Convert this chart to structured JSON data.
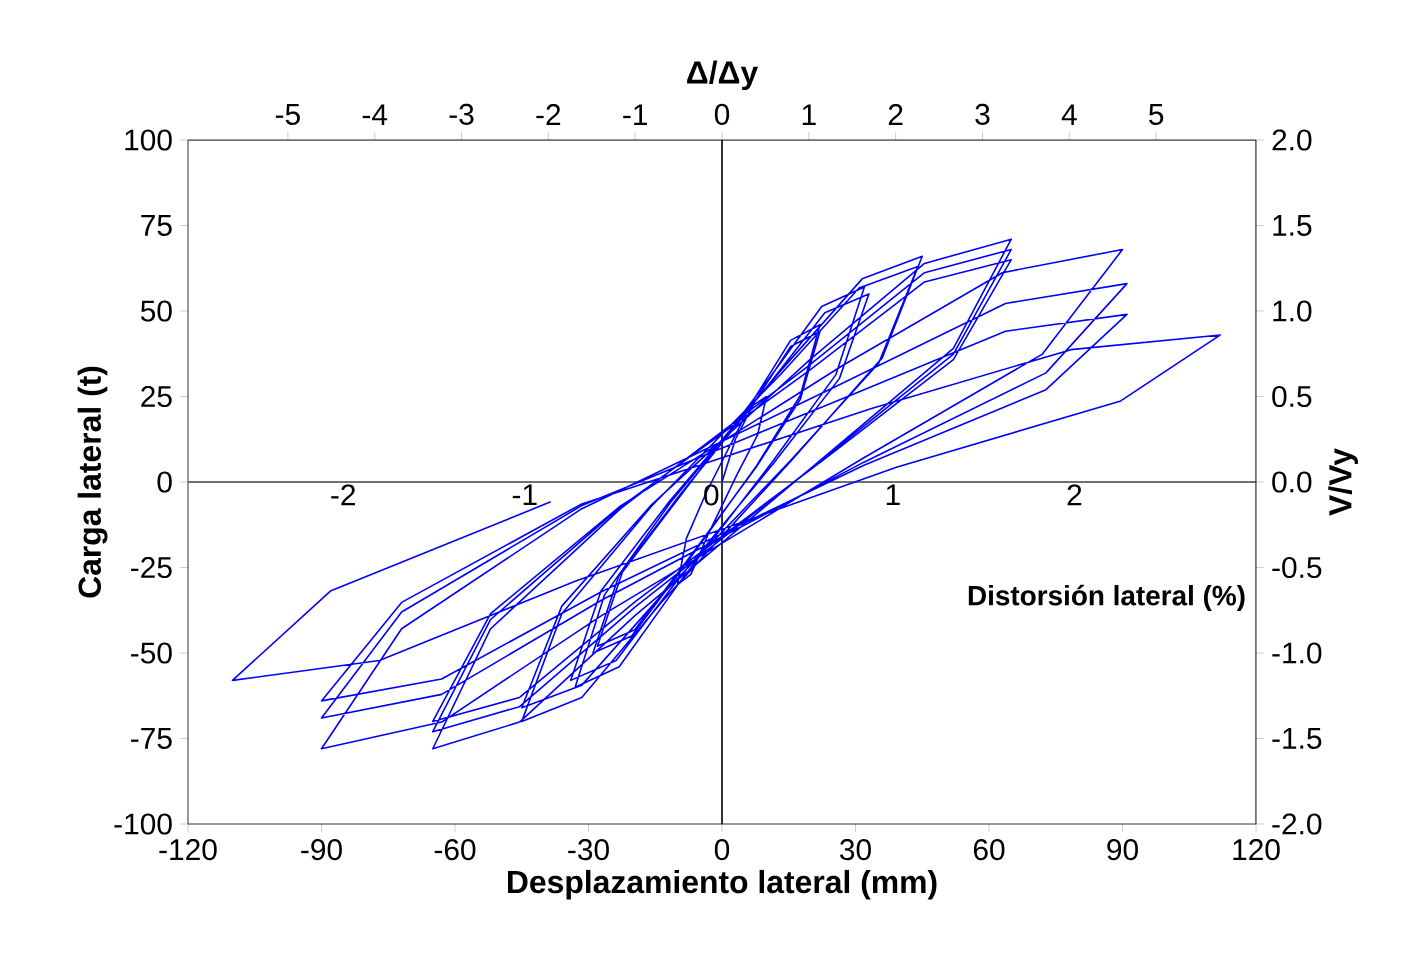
{
  "chart_data": {
    "type": "line",
    "xlabel": "Desplazamiento lateral (mm)",
    "ylabel": "Carga lateral (t)",
    "x2label": "Δ/Δy",
    "y2label": "V/Vy",
    "annotations": [
      {
        "text": "-2",
        "x": -81.6,
        "y": 0
      },
      {
        "text": "-1",
        "x": -40.8,
        "y": 0
      },
      {
        "text": "0",
        "x": 0,
        "y": 0
      },
      {
        "text": "1",
        "x": 40.8,
        "y": 0
      },
      {
        "text": "2",
        "x": 81.6,
        "y": 0
      },
      "Distorsión lateral (%)"
    ],
    "xlim": [
      -120,
      120
    ],
    "xticks": [
      -120,
      -90,
      -60,
      -30,
      0,
      30,
      60,
      90,
      120
    ],
    "ylim": [
      -100,
      100
    ],
    "yticks": [
      -100,
      -75,
      -50,
      -25,
      0,
      25,
      50,
      75,
      100
    ],
    "x2lim": [
      -6.15,
      6.15
    ],
    "x2ticks": [
      -5,
      -4,
      -3,
      -2,
      -1,
      0,
      1,
      2,
      3,
      4,
      5
    ],
    "y2lim": [
      -2,
      2
    ],
    "y2ticks": [
      {
        "value": -2,
        "label": "-2.0"
      },
      {
        "value": -1.5,
        "label": "-1.5"
      },
      {
        "value": -1,
        "label": "-1.0"
      },
      {
        "value": -0.5,
        "label": "-0.5"
      },
      {
        "value": 0,
        "label": "0.0"
      },
      {
        "value": 0.5,
        "label": "0.5"
      },
      {
        "value": 1,
        "label": "1.0"
      },
      {
        "value": 1.5,
        "label": "1.5"
      },
      {
        "value": 2,
        "label": "2.0"
      }
    ],
    "ref_lines": [
      {
        "axis": "x",
        "value": 0,
        "color": "#000000"
      },
      {
        "axis": "y",
        "value": 0,
        "color": "#404040"
      }
    ],
    "line_style": "solid",
    "series": [
      {
        "color": "#0000ff",
        "x": [
          0,
          3,
          7,
          10,
          8,
          3.5,
          -3,
          -7,
          -10,
          -8,
          -3.5,
          6.6,
          15.4,
          22,
          17.6,
          7.7,
          -8.7,
          -20.3,
          -29,
          -23.2,
          -10.2,
          6.6,
          15.4,
          22,
          17.6,
          7.7,
          -8.4,
          -19.6,
          -28,
          -22.4,
          -9.8,
          9.6,
          22.4,
          32,
          25.6,
          11.2,
          -9.9,
          -23.1,
          -33,
          -26.4,
          -11.6,
          9.9,
          23.1,
          33,
          26.4,
          11.6,
          -10.2,
          -23.8,
          -34,
          -27.2,
          -11.9,
          13.5,
          31.5,
          45,
          36,
          15.8,
          -13.5,
          -31.5,
          -45,
          -36,
          -15.8,
          13.2,
          30.8,
          44,
          35.2,
          15.4,
          -13.5,
          -31.5,
          -45,
          -36,
          -15.8,
          19.5,
          45.5,
          65,
          52,
          22.8,
          -19.5,
          -45.5,
          -65,
          -52,
          -22.8,
          19.5,
          45.5,
          65,
          52,
          22.8,
          -19.5,
          -45.5,
          -65,
          -52,
          -22.8,
          19.5,
          45.5,
          65,
          52,
          22.8,
          -19.5,
          -45.5,
          -65,
          -52,
          -22.8,
          27,
          63,
          90,
          72,
          31.5,
          -27,
          -63,
          -90,
          -72,
          -31.5,
          27.3,
          63.7,
          91,
          72.8,
          31.9,
          -27,
          -63,
          -90,
          -72,
          -31.5,
          27.3,
          63.7,
          91,
          72.8,
          31.9,
          -27,
          -63,
          -90,
          -72,
          -31.5,
          33.6,
          78.4,
          112,
          89.6,
          39.2,
          -33,
          -77,
          -110,
          -88,
          -38.5
        ],
        "values": [
          0,
          12.5,
          22.5,
          25,
          13.8,
          2.5,
          -15,
          -27,
          -30,
          -16.5,
          -3,
          23,
          41.4,
          46,
          25.3,
          4.6,
          -25,
          -45,
          -50,
          -27.5,
          -5,
          22,
          39.6,
          44,
          24.2,
          4.4,
          -24,
          -43.2,
          -48,
          -26.4,
          -4.8,
          28.5,
          51.3,
          57,
          31.4,
          5.7,
          -30,
          -54,
          -60,
          -33,
          -6,
          27.5,
          49.5,
          55,
          30.3,
          5.5,
          -29,
          -52.2,
          -58,
          -31.9,
          -5.8,
          33,
          59.4,
          66,
          36.3,
          6.6,
          -35,
          -63,
          -70,
          -38.5,
          -7,
          31.5,
          56.7,
          63,
          34.7,
          6.3,
          -33,
          -59.4,
          -66,
          -36.3,
          -6.6,
          35.5,
          63.9,
          71,
          39.1,
          7.1,
          -39,
          -70.2,
          -78,
          -42.9,
          -7.8,
          34,
          61.2,
          68,
          37.4,
          6.8,
          -36.5,
          -65.7,
          -73,
          -40.2,
          -7.3,
          32.5,
          58.5,
          65,
          35.8,
          6.5,
          -35,
          -63,
          -70,
          -38.5,
          -7,
          34,
          61.2,
          68,
          37.4,
          6.8,
          -39,
          -70.2,
          -78,
          -42.9,
          -7.8,
          29,
          52.2,
          58,
          31.9,
          5.8,
          -34.5,
          -62.1,
          -69,
          -38,
          -6.9,
          24.5,
          44.1,
          49,
          27,
          4.9,
          -32,
          -57.6,
          -64,
          -35.2,
          -6.4,
          21.5,
          38.7,
          43,
          23.7,
          4.3,
          -29,
          -52.2,
          -58,
          -31.9,
          -5.8
        ]
      }
    ]
  }
}
